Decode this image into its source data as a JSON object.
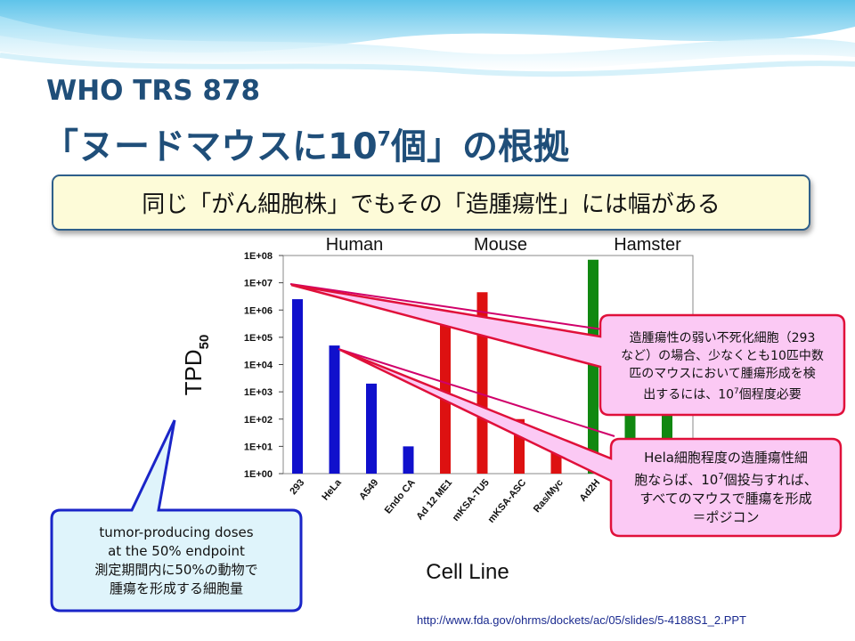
{
  "title": {
    "line1": "WHO TRS 878",
    "line2_main": "「ヌードマウスに10",
    "line2_sup": "7",
    "line2_end": "個」の根拠"
  },
  "banner": {
    "text": "同じ「がん細胞株」でもその「造腫瘍性」には幅がある"
  },
  "chart_data": {
    "type": "bar",
    "xlabel": "Cell Line",
    "ylabel": "TPD",
    "ylabel_sub": "50",
    "yscale": "log",
    "ylim": [
      1,
      100000000
    ],
    "yticks": [
      "1E+00",
      "1E+01",
      "1E+02",
      "1E+03",
      "1E+04",
      "1E+05",
      "1E+06",
      "1E+07",
      "1E+08"
    ],
    "groups": [
      {
        "name": "Human",
        "color": "#1010cc"
      },
      {
        "name": "Mouse",
        "color": "#dd1111"
      },
      {
        "name": "Hamster",
        "color": "#118811"
      }
    ],
    "categories": [
      "293",
      "HeLa",
      "A549",
      "Endo CA",
      "Ad 12 ME1",
      "mKSA-TU5",
      "mKSA-ASC",
      "Ras/Myc",
      "Ad2H",
      "",
      ""
    ],
    "values": [
      2500000,
      50000,
      2000,
      10,
      600000,
      4500000,
      100,
      10,
      70000000,
      100000,
      200
    ],
    "group_index": [
      0,
      0,
      0,
      0,
      1,
      1,
      1,
      1,
      2,
      2,
      2
    ],
    "grid": false,
    "legend": "none"
  },
  "callouts": {
    "tpd": {
      "lines": [
        "tumor-producing doses",
        "at the 50% endpoint",
        "測定期間内に50%の動物で",
        "腫瘍を形成する細胞量"
      ],
      "fill": "#dff4fb",
      "border": "#1a25c8"
    },
    "weak": {
      "lines": [
        "造腫瘍性の弱い不死化細胞（293",
        "など）の場合、少なくとも10匹中数",
        "匹のマウスにおいて腫瘍形成を検",
        "出するには、10^7個程度必要"
      ],
      "fill": "#fbc9f4",
      "border": "#e0103a"
    },
    "hela": {
      "lines": [
        "Hela細胞程度の造腫瘍性細",
        "胞ならば、10^7個投与すれば、",
        "すべてのマウスで腫瘍を形成",
        "＝ポジコン"
      ],
      "fill": "#fbc9f4",
      "border": "#e0103a"
    }
  },
  "footer": {
    "source_url": "http://www.fda.gov/ohrms/dockets/ac/05/slides/5-4188S1_2.PPT"
  }
}
